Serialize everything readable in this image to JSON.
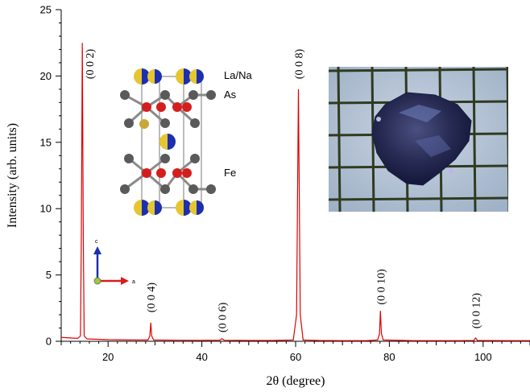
{
  "chart_data": {
    "type": "line",
    "xlabel": "2θ (degree)",
    "ylabel": "Intensity (arb. units)",
    "xlim": [
      10,
      110
    ],
    "ylim": [
      0,
      25
    ],
    "x_ticks": [
      20,
      40,
      60,
      80,
      100
    ],
    "y_ticks": [
      0,
      5,
      10,
      15,
      20,
      25
    ],
    "grid": false,
    "legend": "none",
    "series": [
      {
        "color": "#e00000",
        "points": [
          [
            10.0,
            0.3
          ],
          [
            12.0,
            0.25
          ],
          [
            13.5,
            0.22
          ],
          [
            14.1,
            0.4
          ],
          [
            14.3,
            8.0
          ],
          [
            14.5,
            22.5
          ],
          [
            14.7,
            8.0
          ],
          [
            14.9,
            0.4
          ],
          [
            15.5,
            0.18
          ],
          [
            20.0,
            0.12
          ],
          [
            25.0,
            0.1
          ],
          [
            28.5,
            0.1
          ],
          [
            28.9,
            0.4
          ],
          [
            29.1,
            1.4
          ],
          [
            29.3,
            0.4
          ],
          [
            29.7,
            0.1
          ],
          [
            35.0,
            0.08
          ],
          [
            40.0,
            0.07
          ],
          [
            43.8,
            0.08
          ],
          [
            44.3,
            0.2
          ],
          [
            44.8,
            0.08
          ],
          [
            50.0,
            0.06
          ],
          [
            55.0,
            0.06
          ],
          [
            59.5,
            0.1
          ],
          [
            60.2,
            2.0
          ],
          [
            60.6,
            19.0
          ],
          [
            61.0,
            2.0
          ],
          [
            61.6,
            0.1
          ],
          [
            65.0,
            0.06
          ],
          [
            70.0,
            0.05
          ],
          [
            75.0,
            0.05
          ],
          [
            77.5,
            0.1
          ],
          [
            77.9,
            0.6
          ],
          [
            78.1,
            2.3
          ],
          [
            78.3,
            0.6
          ],
          [
            78.7,
            0.1
          ],
          [
            85.0,
            0.05
          ],
          [
            90.0,
            0.05
          ],
          [
            95.0,
            0.05
          ],
          [
            98.0,
            0.06
          ],
          [
            98.4,
            0.25
          ],
          [
            98.8,
            0.06
          ],
          [
            105.0,
            0.05
          ],
          [
            110.0,
            0.05
          ]
        ]
      }
    ],
    "annotations": [
      {
        "text": "(0 0 2)",
        "x": 16.0,
        "y": 20.9
      },
      {
        "text": "(0 0 4)",
        "x": 29.1,
        "y": 3.3
      },
      {
        "text": "(0 0 6)",
        "x": 44.3,
        "y": 1.8
      },
      {
        "text": "(0 0 8)",
        "x": 60.6,
        "y": 20.9
      },
      {
        "text": "(0 0 10)",
        "x": 78.1,
        "y": 4.1
      },
      {
        "text": "(0 0 12)",
        "x": 98.4,
        "y": 2.3
      }
    ]
  },
  "structure_inset": {
    "labels": [
      "La/Na",
      "As",
      "Fe"
    ],
    "axis_labels": {
      "c": "c",
      "a": "a"
    },
    "colors": {
      "la_na": "#e6c630",
      "na": "#1c2fb0",
      "as": "#5a5a5a",
      "fe": "#d41e1e"
    }
  },
  "photo_inset": {
    "grid_color": "#2f3a20",
    "background": "#b8c6d8",
    "crystal_color": "#2a2f5a"
  }
}
